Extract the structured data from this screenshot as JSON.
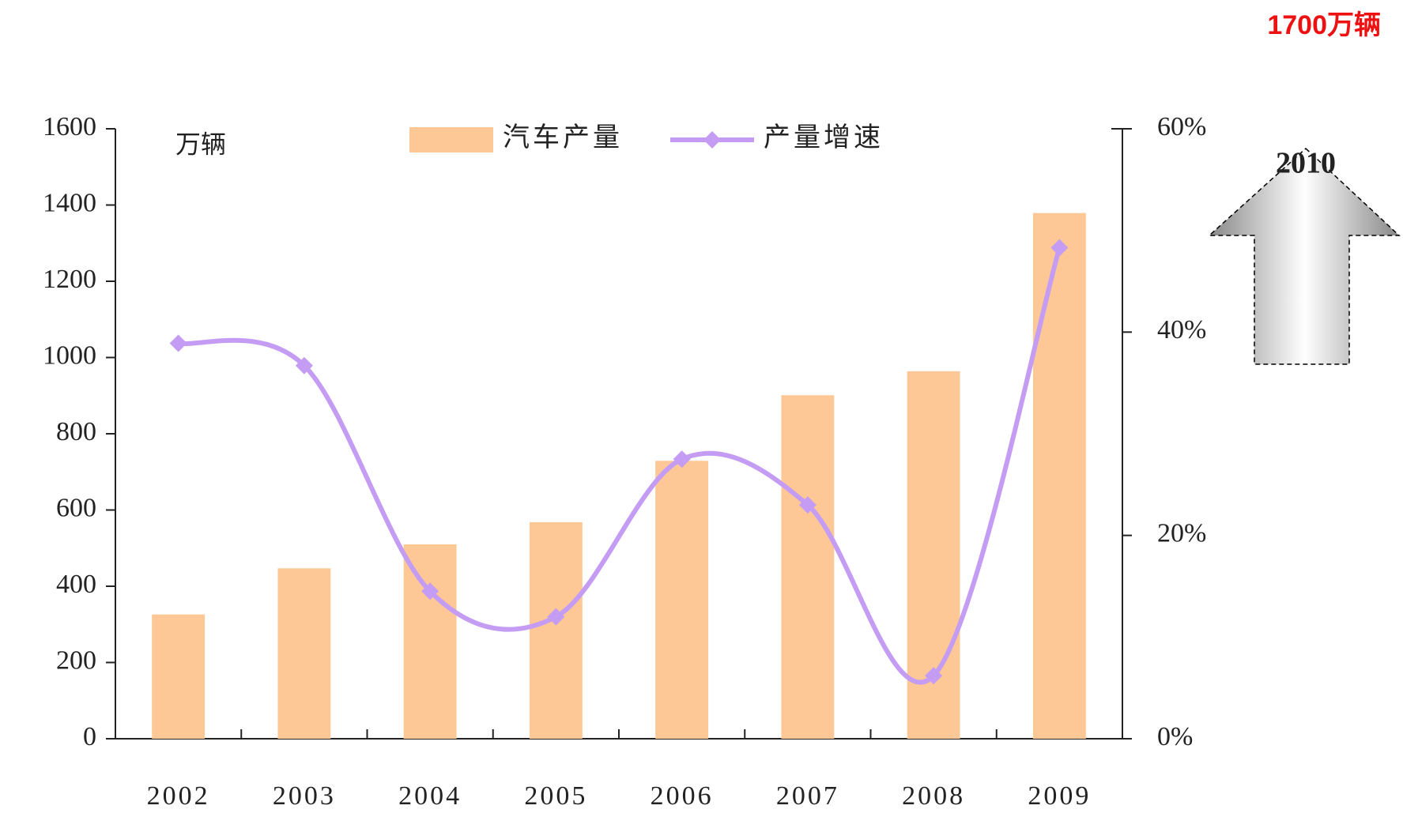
{
  "chart_data": {
    "type": "bar-line",
    "categories": [
      "2002",
      "2003",
      "2004",
      "2005",
      "2006",
      "2007",
      "2008",
      "2009"
    ],
    "series": [
      {
        "name": "汽车产量",
        "type": "bar",
        "color": "#fdc896",
        "values": [
          326,
          447,
          510,
          568,
          729,
          901,
          964,
          1379
        ]
      },
      {
        "name": "产量增速",
        "type": "line",
        "axis": "y2",
        "color": "#c49cf4",
        "values": [
          38.9,
          36.7,
          14.5,
          12.0,
          27.5,
          23.0,
          6.2,
          48.3
        ]
      }
    ],
    "ylim": [
      0,
      1600
    ],
    "yticks": [
      0,
      200,
      400,
      600,
      800,
      1000,
      1200,
      1400,
      1600
    ],
    "y2lim": [
      0,
      60
    ],
    "y2ticks": [
      {
        "value": 0,
        "label": "0%"
      },
      {
        "value": 20,
        "label": "20%"
      },
      {
        "value": 40,
        "label": "40%"
      },
      {
        "value": 60,
        "label": "60%"
      }
    ],
    "y_unit": "万辆",
    "annotations": [
      "1700万辆",
      "2010"
    ],
    "legend": "top"
  }
}
